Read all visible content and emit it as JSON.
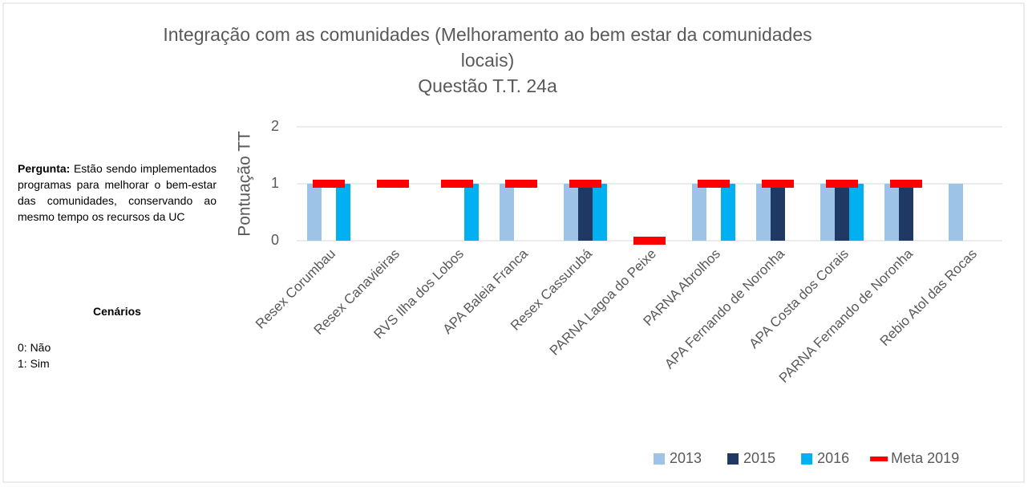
{
  "chart_data": {
    "type": "bar",
    "title": [
      "Integração com as comunidades (Melhoramento ao bem estar da comunidades",
      "locais)",
      "Questão T.T. 24a"
    ],
    "y_label": "Pontuação TT",
    "categories": [
      "Resex Corumbau",
      "Resex Canavieiras",
      "RVS Ilha dos Lobos",
      "APA Baleia Franca",
      "Resex Cassurubá",
      "PARNA Lagoa do Peixe",
      "PARNA Abrolhos",
      "APA Fernando de Noronha",
      "APA Costa dos Corais",
      "PARNA Fernando de Noronha",
      "Rebio Atol das Rocas"
    ],
    "series": [
      {
        "name": "2013",
        "color": "#9dc3e6",
        "style": "bar",
        "values": [
          1,
          0,
          0,
          1,
          1,
          0,
          1,
          1,
          1,
          1,
          1
        ]
      },
      {
        "name": "2015",
        "color": "#203864",
        "style": "bar",
        "values": [
          0,
          0,
          0,
          0,
          1,
          0,
          0,
          1,
          1,
          1,
          0
        ]
      },
      {
        "name": "2016",
        "color": "#00b0f0",
        "style": "bar",
        "values": [
          1,
          0,
          1,
          0,
          1,
          0,
          1,
          0,
          1,
          0,
          0
        ]
      },
      {
        "name": "Meta 2019",
        "color": "#ff0000",
        "style": "dash",
        "values": [
          1,
          1,
          1,
          1,
          1,
          0,
          1,
          1,
          1,
          1,
          null
        ]
      }
    ],
    "ylim": [
      0,
      2
    ],
    "yticks": [
      0,
      1,
      2
    ],
    "grid": true,
    "legend": "bottom"
  },
  "notes": {
    "question_label": "Pergunta:",
    "question": "Estão sendo implementados programas para melhorar o bem-estar das comunidades, conservando ao mesmo tempo os recursos da UC",
    "scenarios_title": "Cenários",
    "scenarios": [
      "0: Não",
      "1: Sim"
    ]
  }
}
